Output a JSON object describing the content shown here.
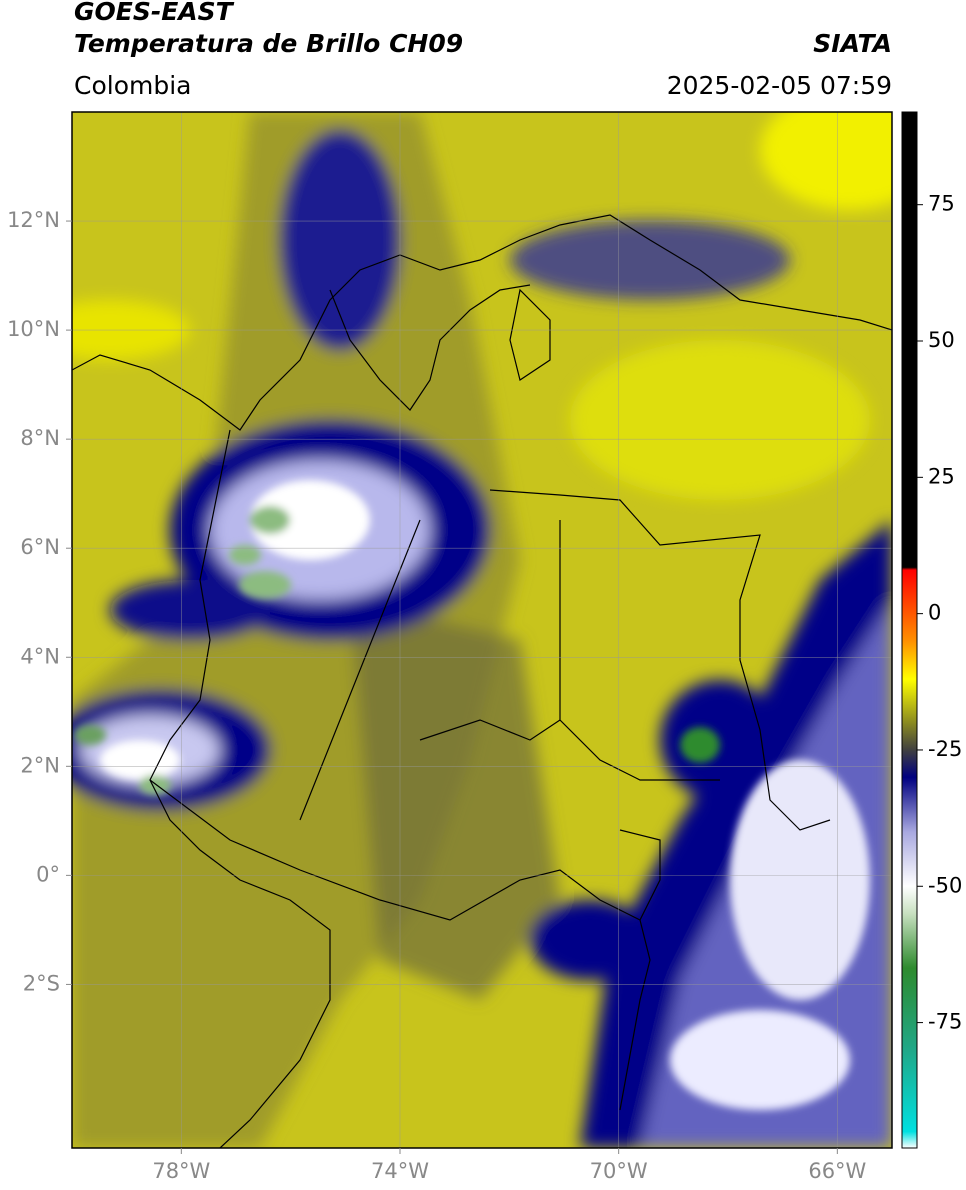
{
  "header": {
    "title": "GOES-EAST",
    "subtitle": "Temperatura de Brillo CH09",
    "source": "SIATA",
    "region": "Colombia",
    "datetime": "2025-02-05 07:59"
  },
  "map": {
    "xlim": [
      -80,
      -65
    ],
    "ylim": [
      -5,
      14
    ],
    "xticks": [
      {
        "value": -78,
        "label": "78°W"
      },
      {
        "value": -74,
        "label": "74°W"
      },
      {
        "value": -70,
        "label": "70°W"
      },
      {
        "value": -66,
        "label": "66°W"
      }
    ],
    "yticks": [
      {
        "value": 12,
        "label": "12°N"
      },
      {
        "value": 10,
        "label": "10°N"
      },
      {
        "value": 8,
        "label": "8°N"
      },
      {
        "value": 6,
        "label": "6°N"
      },
      {
        "value": 4,
        "label": "4°N"
      },
      {
        "value": 2,
        "label": "2°N"
      },
      {
        "value": 0,
        "label": "0°"
      },
      {
        "value": -2,
        "label": "2°S"
      }
    ],
    "grid": true
  },
  "colorbar": {
    "lim": [
      -98,
      92
    ],
    "ticks": [
      75,
      50,
      25,
      0,
      -25,
      -50,
      -75
    ],
    "colorscale": [
      {
        "value": -98,
        "color": "#ffffff"
      },
      {
        "value": -95,
        "color": "#00e0e0"
      },
      {
        "value": -80,
        "color": "#20a888"
      },
      {
        "value": -65,
        "color": "#2e8b2e"
      },
      {
        "value": -55,
        "color": "#c8e0c0"
      },
      {
        "value": -50,
        "color": "#ffffff"
      },
      {
        "value": -40,
        "color": "#a8a8e0"
      },
      {
        "value": -30,
        "color": "#000080"
      },
      {
        "value": -25,
        "color": "#404040"
      },
      {
        "value": -20,
        "color": "#8a8a20"
      },
      {
        "value": -12,
        "color": "#ffff00"
      },
      {
        "value": -5,
        "color": "#ff9000"
      },
      {
        "value": 8,
        "color": "#ff0000"
      },
      {
        "value": 8.5,
        "color": "#000000"
      },
      {
        "value": 92,
        "color": "#000000"
      }
    ]
  }
}
